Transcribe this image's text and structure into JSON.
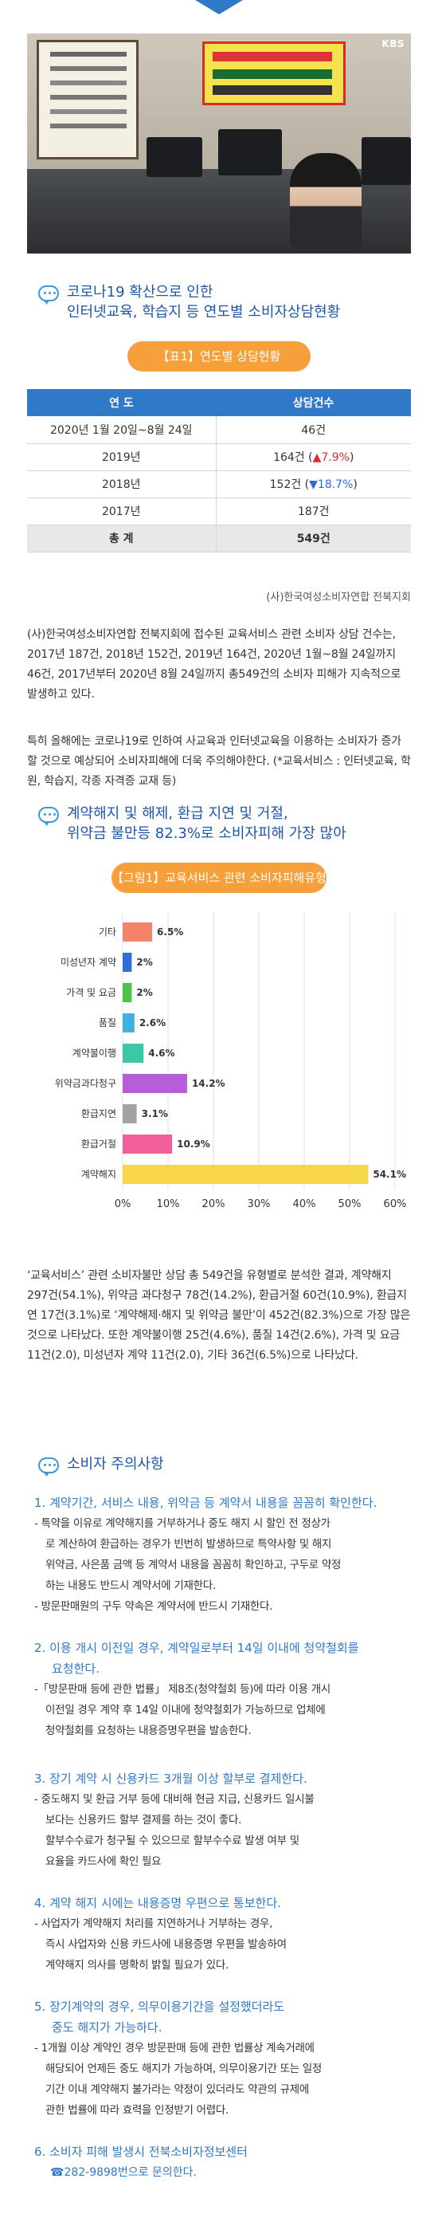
{
  "photo": {
    "watermark": "KBS"
  },
  "section1": {
    "title_line1": "코로나19 확산으로 인한",
    "title_line2": "인터넷교육, 학습지 등 연도별 소비자상담현황"
  },
  "table1": {
    "caption": "【표1】연도별 상담현황",
    "headers": [
      "연 도",
      "상담건수"
    ],
    "rows": [
      {
        "year": "2020년 1월 20일~8월 24일",
        "count": "46건",
        "change": ""
      },
      {
        "year": "2019년",
        "count": "164건 (",
        "change": "▲7.9%",
        "change_type": "up",
        "close": ")"
      },
      {
        "year": "2018년",
        "count": "152건 (",
        "change": "▼18.7%",
        "change_type": "down",
        "close": ")"
      },
      {
        "year": "2017년",
        "count": "187건",
        "change": ""
      }
    ],
    "total": {
      "label": "총 계",
      "count": "549건"
    },
    "source": "(사)한국여성소비자연합 전북지회"
  },
  "paragraphs": {
    "p1": "(사)한국여성소비자연합 전북지회에 접수된 교육서비스 관련 소비자 상담 건수는, 2017년 187건, 2018년 152건, 2019년 164건, 2020년 1월~8월 24일까지 46건, 2017년부터 2020년 8월 24일까지 총549건의 소비자 피해가 지속적으로 발생하고 있다.",
    "p2": "특히 올해에는 코로나19로 인하여 사교육과 인터넷교육을 이용하는 소비자가 증가할 것으로 예상되어 소비자피해에 더욱 주의해야한다. (*교육서비스 : 인터넷교육, 학원, 학습지, 각종 자격증 교재 등)",
    "p3": "‘교육서비스’ 관련 소비자불만 상담 총 549건을 유형별로 분석한 결과, 계약해지 297건(54.1%), 위약금 과다청구 78건(14.2%), 환급거절 60건(10.9%), 환급지연 17건(3.1%)로 ‘계약해제·해지 및 위약금 불만’이 452건(82.3%)으로 가장 많은 것으로 나타났다. 또한 계약불이행 25건(4.6%), 품질 14건(2.6%), 가격 및 요금 11건(2.0), 미성년자 계약 11건(2.0), 기타 36건(6.5%)으로 나타났다."
  },
  "section2": {
    "title_line1": "계약해지 및 해제, 환급 지연 및 거절,",
    "title_line2": "위약금 불만등 82.3%로 소비자피해 가장 많아"
  },
  "figure1": {
    "caption": "【그림1】교육서비스 관련 소비자피해유형"
  },
  "chart_data": {
    "type": "bar",
    "orientation": "horizontal",
    "categories": [
      "기타",
      "미성년자 계약",
      "가격 및 요금",
      "품질",
      "계약불이행",
      "위약금과다청구",
      "환급지연",
      "환급거절",
      "계약해지"
    ],
    "values": [
      6.5,
      2,
      2,
      2.6,
      4.6,
      14.2,
      3.1,
      10.9,
      54.1
    ],
    "labels": [
      "6.5%",
      "2%",
      "2%",
      "2.6%",
      "4.6%",
      "14.2%",
      "3.1%",
      "10.9%",
      "54.1%"
    ],
    "colors": [
      "#f4836b",
      "#2f6fd8",
      "#4cc24c",
      "#3fb0e0",
      "#3dc6a8",
      "#b65ed8",
      "#a3a3a3",
      "#f2609c",
      "#f6d64a"
    ],
    "xticks": [
      "0%",
      "10%",
      "20%",
      "30%",
      "40%",
      "50%",
      "60%"
    ],
    "xlim": [
      0,
      60
    ],
    "grid": true
  },
  "section3": {
    "title": "소비자 주의사항"
  },
  "advice": [
    {
      "heading": "1. 계약기간, 서비스 내용, 위약금 등 계약서 내용을 꼼꼼히 확인한다.",
      "body": [
        "- 특약을 이유로 계약해지를 거부하거나 중도 해지 시 할인 전 정상가",
        "  로 계산하여 환급하는 경우가 빈번히 발생하므로 특약사항 및 해지",
        "  위약금, 사은품 금액 등 계약서 내용을 꼼꼼히 확인하고, 구두로 약정",
        "  하는 내용도 반드시 계약서에 기재한다.",
        "- 방문판매원의 구두 약속은 계약서에 반드시 기재한다."
      ]
    },
    {
      "heading": "2. 이용 개시 이전일 경우, 계약일로부터 14일 이내에 청약철회를",
      "heading2": "    요청한다.",
      "body": [
        "-「방문판매 등에 관한 법률」 제8조(청약철회 등)에 따라 이용 개시",
        "  이전일 경우 계약 후 14일 이내에 청약철회가 가능하므로 업체에",
        "  청약철회를 요청하는 내용증명우편을 발송한다."
      ]
    },
    {
      "heading": "3. 장기 계약 시 신용카드 3개월 이상 할부로 결제한다.",
      "body": [
        "- 중도해지 및 환급 거부 등에 대비해 현금 지급, 신용카드 일시불",
        "  보다는 신용카드 할부 결제를 하는 것이 좋다.",
        "  할부수수료가 청구될 수 있으므로 할부수수료 발생 여부 및",
        "  요율을 카드사에 확인 필요"
      ]
    },
    {
      "heading": "4. 계약 해지 시에는 내용증명 우편으로 통보한다.",
      "body": [
        "- 사업자가 계약해지 처리를 지연하거나 거부하는 경우,",
        "  즉시 사업자와 신용 카드사에 내용증명 우편을 발송하여",
        "  계약해지 의사를 명확히 밝힐 필요가 있다."
      ]
    },
    {
      "heading": "5. 장기계약의 경우, 의무이용기간을 설정했더라도",
      "heading2": "    중도 해지가 가능하다.",
      "body": [
        "- 1개월 이상 계약인 경우 방문판매 등에 관한 법률상 계속거래에",
        "  해당되어 언제든 중도 해지가 가능하며, 의무이용기간 또는 일정",
        "  기간 이내 계약해지 불가라는 약정이 있더라도 약관의 규제에",
        "  관한 법률에 따라 효력을 인정받기 어렵다."
      ]
    },
    {
      "heading": "6. 소비자 피해 발생시  전북소비자정보센터",
      "phone": "☎282-9898번으로 문의한다."
    }
  ]
}
